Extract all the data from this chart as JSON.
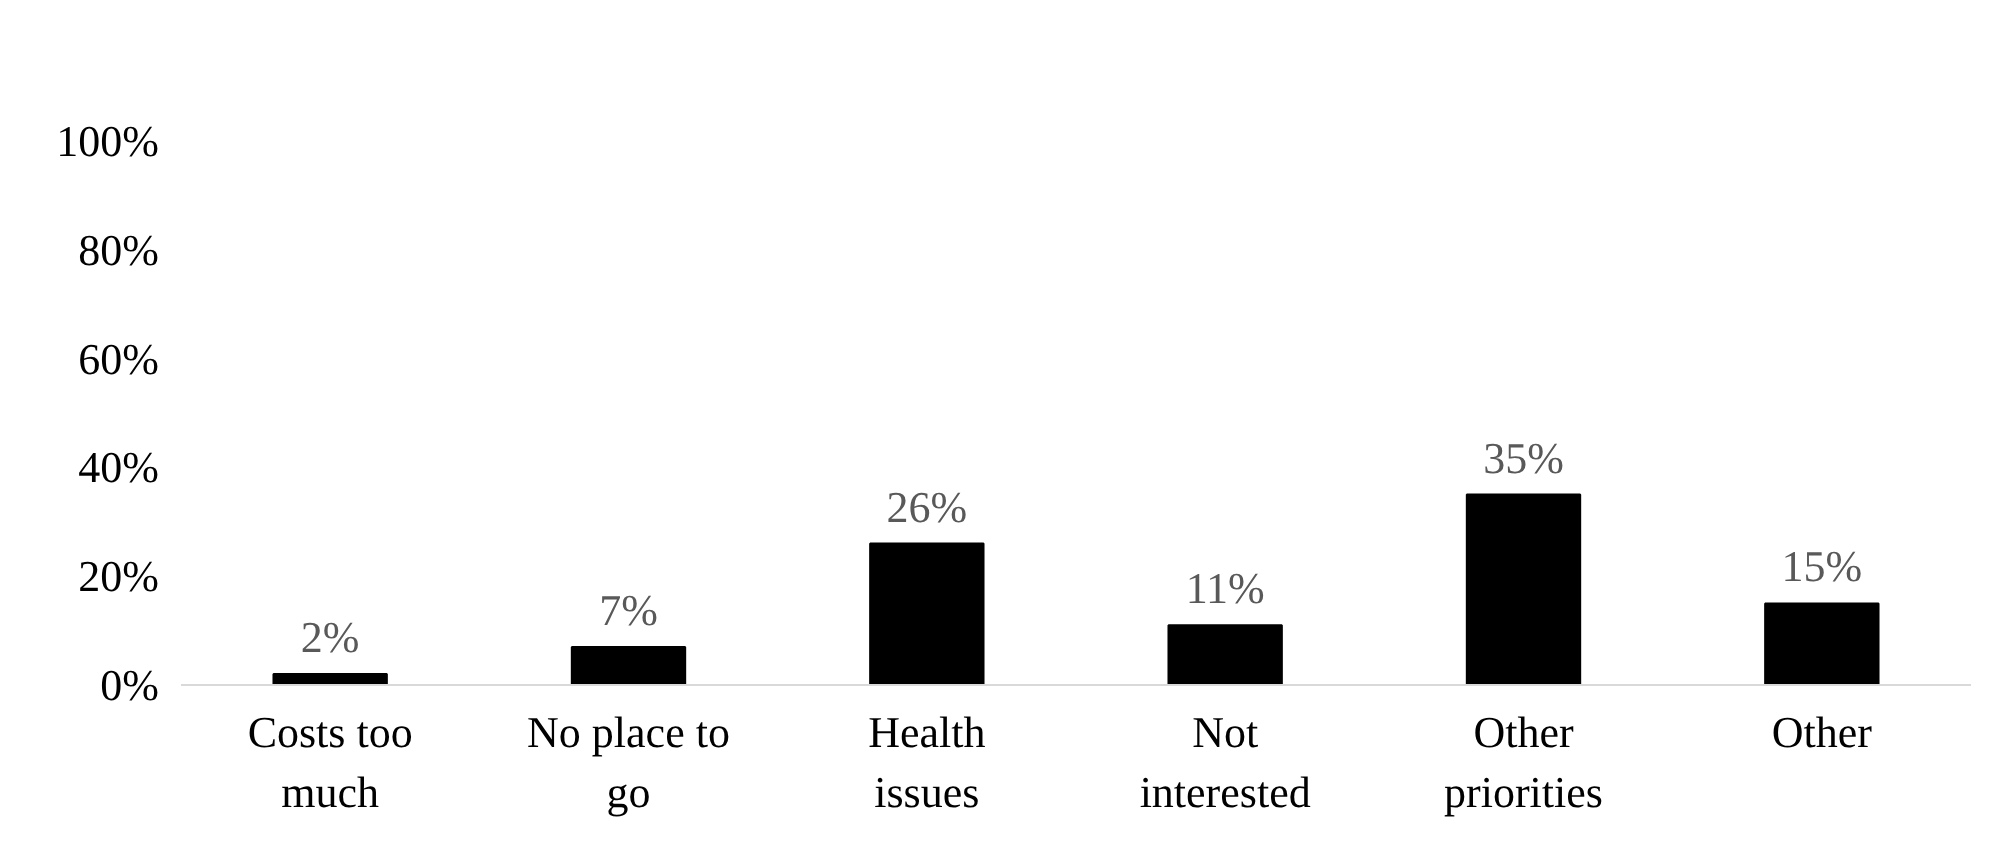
{
  "chart_data": {
    "type": "bar",
    "categories": [
      "Costs too much",
      "No place to go",
      "Health issues",
      "Not interested",
      "Other priorities",
      "Other"
    ],
    "values": [
      2,
      7,
      26,
      11,
      35,
      15
    ],
    "color": "#000000",
    "ylim": [
      0,
      100
    ],
    "yticks": [
      {
        "value": 0,
        "label": "0%"
      },
      {
        "value": 20,
        "label": "20%"
      },
      {
        "value": 40,
        "label": "40%"
      },
      {
        "value": 60,
        "label": "60%"
      },
      {
        "value": 80,
        "label": "80%"
      },
      {
        "value": 100,
        "label": "100%"
      }
    ],
    "grid": false,
    "value_labels": [
      "2%",
      "7%",
      "26%",
      "11%",
      "35%",
      "15%"
    ]
  }
}
